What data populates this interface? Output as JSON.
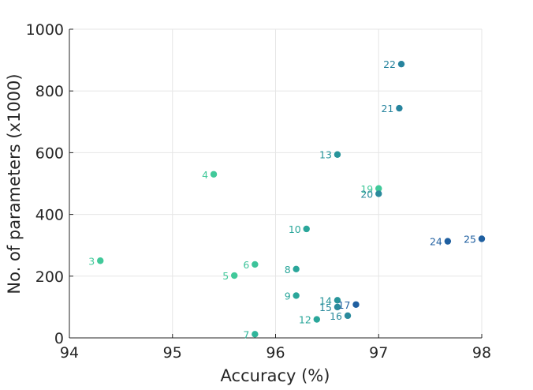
{
  "chart_data": {
    "type": "scatter",
    "title": "",
    "xlabel": "Accuracy (%)",
    "ylabel": "No. of parameters (x1000)",
    "xlim": [
      94,
      98
    ],
    "ylim": [
      0,
      1000
    ],
    "x_ticks": [
      94,
      95,
      96,
      97,
      98
    ],
    "y_ticks": [
      0,
      200,
      400,
      600,
      800,
      1000
    ],
    "grid": true,
    "legend": "none",
    "points": [
      {
        "label": "3",
        "x": 94.3,
        "y": 250,
        "color": "#41c99a"
      },
      {
        "label": "4",
        "x": 95.4,
        "y": 530,
        "color": "#41c99a"
      },
      {
        "label": "5",
        "x": 95.6,
        "y": 202,
        "color": "#41c99a"
      },
      {
        "label": "6",
        "x": 95.8,
        "y": 238,
        "color": "#3cc39a"
      },
      {
        "label": "7",
        "x": 95.8,
        "y": 12,
        "color": "#2fb59a"
      },
      {
        "label": "8",
        "x": 96.2,
        "y": 223,
        "color": "#2aa69a"
      },
      {
        "label": "9",
        "x": 96.2,
        "y": 137,
        "color": "#2aa69a"
      },
      {
        "label": "10",
        "x": 96.3,
        "y": 353,
        "color": "#2aa69a"
      },
      {
        "label": "12",
        "x": 96.4,
        "y": 60,
        "color": "#2aa69a"
      },
      {
        "label": "13",
        "x": 96.6,
        "y": 594,
        "color": "#27949a"
      },
      {
        "label": "14",
        "x": 96.6,
        "y": 122,
        "color": "#27949a"
      },
      {
        "label": "15",
        "x": 96.6,
        "y": 100,
        "color": "#2a8a9c"
      },
      {
        "label": "16",
        "x": 96.7,
        "y": 72,
        "color": "#2a8a9c"
      },
      {
        "label": "17",
        "x": 96.78,
        "y": 108,
        "color": "#1f5fa0"
      },
      {
        "label": "19",
        "x": 97.0,
        "y": 484,
        "color": "#41c99a"
      },
      {
        "label": "20",
        "x": 97.0,
        "y": 467,
        "color": "#2a8a9c"
      },
      {
        "label": "21",
        "x": 97.2,
        "y": 744,
        "color": "#27849e"
      },
      {
        "label": "22",
        "x": 97.22,
        "y": 887,
        "color": "#27849e"
      },
      {
        "label": "24",
        "x": 97.67,
        "y": 313,
        "color": "#1f5fa0"
      },
      {
        "label": "25",
        "x": 98.0,
        "y": 321,
        "color": "#1f5fa0"
      }
    ]
  }
}
